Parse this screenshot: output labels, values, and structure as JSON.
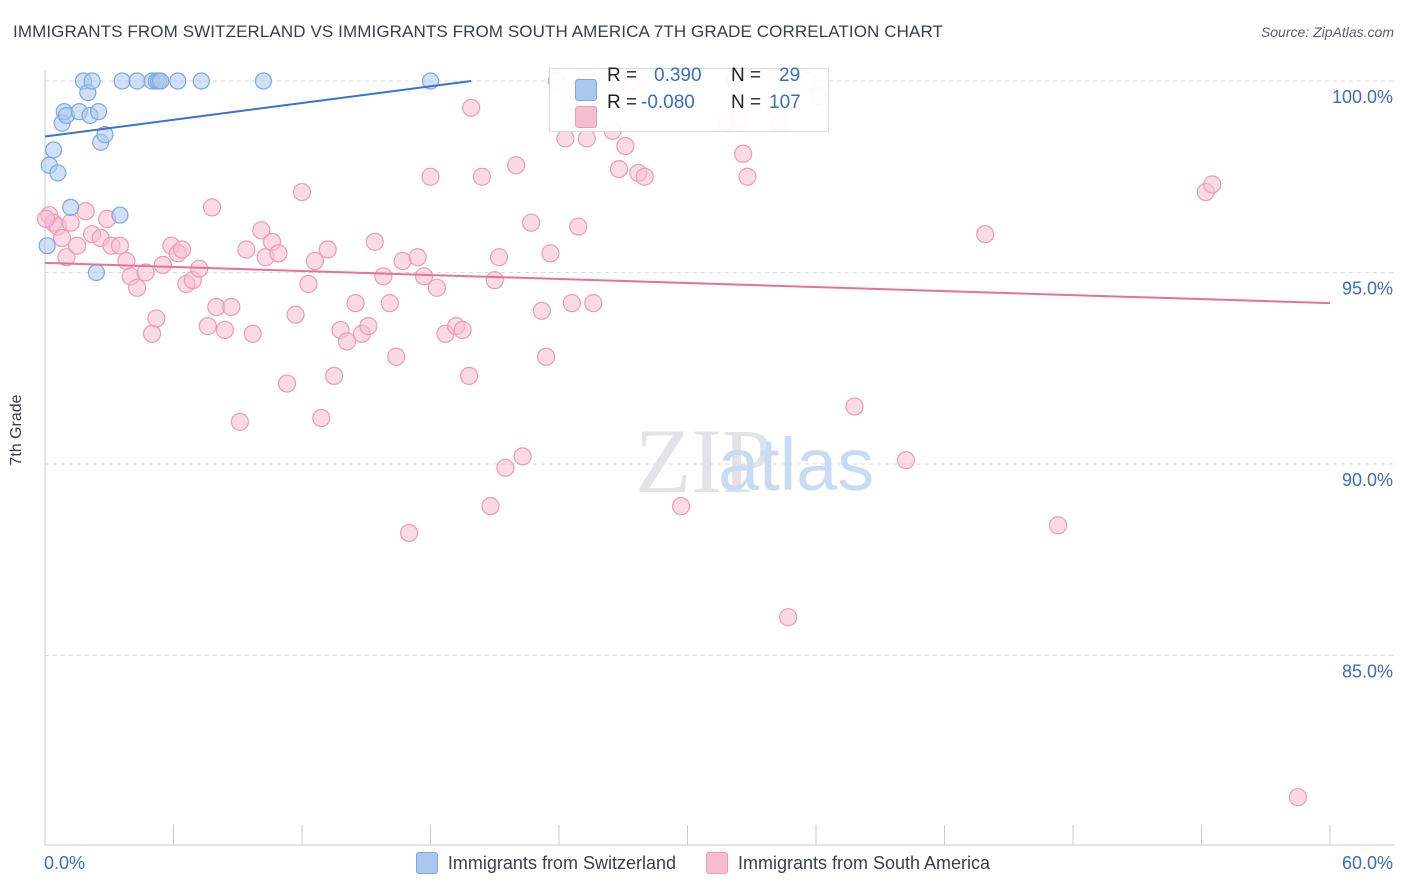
{
  "header": {
    "title": "IMMIGRANTS FROM SWITZERLAND VS IMMIGRANTS FROM SOUTH AMERICA 7TH GRADE CORRELATION CHART",
    "source": "Source: ZipAtlas.com"
  },
  "watermark": {
    "zip": "ZIP",
    "atlas": "atlas"
  },
  "stats": {
    "blue": {
      "r_label": "R =",
      "r_value": "0.390",
      "n_label": "N =",
      "n_value": "29"
    },
    "pink": {
      "r_label": "R =",
      "r_value": "-0.080",
      "n_label": "N =",
      "n_value": "107"
    }
  },
  "colors": {
    "blue_fill": "#a9c7ef",
    "blue_stroke": "#7ea8e0",
    "blue_line": "#3a72d0",
    "pink_fill": "#f6bdd0",
    "pink_stroke": "#ec9ab7",
    "pink_line": "#e8709a",
    "tick_text": "#3b6cc2",
    "grid": "#d6d9de"
  },
  "chart_data": {
    "type": "scatter",
    "title": "IMMIGRANTS FROM SWITZERLAND VS IMMIGRANTS FROM SOUTH AMERICA 7TH GRADE CORRELATION CHART",
    "xlabel": "",
    "ylabel": "7th Grade",
    "xlim": [
      0,
      60
    ],
    "ylim": [
      80.7,
      100.7
    ],
    "x_tick_labels": [
      "0.0%",
      "60.0%"
    ],
    "y_ticks": [
      {
        "value": 100,
        "label": "100.0%"
      },
      {
        "value": 95,
        "label": "95.0%"
      },
      {
        "value": 90,
        "label": "90.0%"
      },
      {
        "value": 85,
        "label": "85.0%"
      }
    ],
    "grid": true,
    "legend_position": "bottom",
    "series": [
      {
        "name": "Immigrants from Switzerland",
        "color": "#a9c7ef",
        "trend": {
          "x": [
            0,
            19.9
          ],
          "y": [
            98.55,
            100.0
          ]
        },
        "points": [
          [
            0.1,
            95.7
          ],
          [
            0.2,
            97.8
          ],
          [
            0.4,
            98.2
          ],
          [
            0.6,
            97.6
          ],
          [
            0.8,
            98.9
          ],
          [
            0.9,
            99.2
          ],
          [
            1.0,
            99.1
          ],
          [
            1.2,
            96.7
          ],
          [
            1.6,
            99.2
          ],
          [
            1.8,
            100.0
          ],
          [
            2.0,
            99.7
          ],
          [
            2.1,
            99.1
          ],
          [
            2.2,
            100.0
          ],
          [
            2.4,
            95.0
          ],
          [
            2.5,
            99.2
          ],
          [
            2.6,
            98.4
          ],
          [
            2.8,
            98.6
          ],
          [
            3.5,
            96.5
          ],
          [
            3.6,
            100.0
          ],
          [
            4.3,
            100.0
          ],
          [
            5.0,
            100.0
          ],
          [
            5.2,
            100.0
          ],
          [
            5.3,
            100.0
          ],
          [
            5.4,
            100.0
          ],
          [
            6.2,
            100.0
          ],
          [
            7.3,
            100.0
          ],
          [
            10.2,
            100.0
          ],
          [
            18.0,
            100.0
          ],
          [
            32.2,
            100.0
          ]
        ]
      },
      {
        "name": "Immigrants from South America",
        "color": "#f6bdd0",
        "trend": {
          "x": [
            0,
            60
          ],
          "y": [
            95.25,
            94.2
          ]
        },
        "points": [
          [
            0.2,
            96.5
          ],
          [
            0.4,
            96.3
          ],
          [
            0.6,
            96.2
          ],
          [
            0.8,
            95.9
          ],
          [
            1.0,
            95.4
          ],
          [
            1.2,
            96.3
          ],
          [
            1.5,
            95.7
          ],
          [
            1.9,
            96.6
          ],
          [
            2.2,
            96.0
          ],
          [
            2.6,
            95.9
          ],
          [
            2.9,
            96.4
          ],
          [
            3.1,
            95.7
          ],
          [
            3.5,
            95.7
          ],
          [
            3.8,
            95.3
          ],
          [
            4.0,
            94.9
          ],
          [
            4.3,
            94.6
          ],
          [
            4.7,
            95.0
          ],
          [
            5.0,
            93.4
          ],
          [
            5.2,
            93.8
          ],
          [
            5.5,
            95.2
          ],
          [
            5.9,
            95.7
          ],
          [
            6.2,
            95.5
          ],
          [
            6.4,
            95.6
          ],
          [
            6.6,
            94.7
          ],
          [
            6.9,
            94.8
          ],
          [
            7.2,
            95.1
          ],
          [
            7.6,
            93.6
          ],
          [
            7.8,
            96.7
          ],
          [
            8.0,
            94.1
          ],
          [
            8.4,
            93.5
          ],
          [
            8.7,
            94.1
          ],
          [
            9.1,
            91.1
          ],
          [
            9.4,
            95.6
          ],
          [
            9.7,
            93.4
          ],
          [
            10.1,
            96.1
          ],
          [
            10.3,
            95.4
          ],
          [
            10.6,
            95.8
          ],
          [
            10.9,
            95.5
          ],
          [
            11.3,
            92.1
          ],
          [
            11.7,
            93.9
          ],
          [
            12.0,
            97.1
          ],
          [
            12.3,
            94.7
          ],
          [
            12.6,
            95.3
          ],
          [
            12.9,
            91.2
          ],
          [
            13.2,
            95.6
          ],
          [
            13.5,
            92.3
          ],
          [
            13.8,
            93.5
          ],
          [
            14.1,
            93.2
          ],
          [
            14.5,
            94.2
          ],
          [
            14.8,
            93.4
          ],
          [
            15.1,
            93.6
          ],
          [
            15.4,
            95.8
          ],
          [
            15.8,
            94.9
          ],
          [
            16.1,
            94.2
          ],
          [
            16.4,
            92.8
          ],
          [
            16.7,
            95.3
          ],
          [
            17.0,
            88.2
          ],
          [
            17.4,
            95.4
          ],
          [
            17.7,
            94.9
          ],
          [
            18.0,
            97.5
          ],
          [
            18.3,
            94.6
          ],
          [
            18.7,
            93.4
          ],
          [
            19.2,
            93.6
          ],
          [
            19.5,
            93.5
          ],
          [
            19.8,
            92.3
          ],
          [
            19.9,
            99.3
          ],
          [
            20.4,
            97.5
          ],
          [
            20.8,
            88.9
          ],
          [
            21.0,
            94.8
          ],
          [
            21.2,
            95.4
          ],
          [
            21.5,
            89.9
          ],
          [
            22.0,
            97.8
          ],
          [
            22.3,
            90.2
          ],
          [
            22.7,
            96.3
          ],
          [
            23.2,
            94.0
          ],
          [
            23.4,
            92.8
          ],
          [
            23.6,
            95.5
          ],
          [
            23.9,
            100.0
          ],
          [
            24.3,
            98.5
          ],
          [
            24.6,
            94.2
          ],
          [
            24.9,
            96.2
          ],
          [
            25.3,
            98.5
          ],
          [
            25.6,
            94.2
          ],
          [
            26.2,
            100.0
          ],
          [
            26.5,
            98.7
          ],
          [
            26.8,
            97.7
          ],
          [
            27.1,
            98.3
          ],
          [
            27.4,
            100.0
          ],
          [
            27.7,
            97.6
          ],
          [
            28.0,
            97.5
          ],
          [
            29.7,
            88.9
          ],
          [
            31.8,
            98.9
          ],
          [
            32.4,
            99.0
          ],
          [
            32.6,
            98.1
          ],
          [
            32.8,
            97.5
          ],
          [
            34.3,
            98.9
          ],
          [
            34.7,
            86.0
          ],
          [
            35.6,
            100.0
          ],
          [
            36.1,
            99.6
          ],
          [
            37.8,
            91.5
          ],
          [
            40.2,
            90.1
          ],
          [
            43.9,
            96.0
          ],
          [
            47.3,
            88.4
          ],
          [
            54.2,
            97.1
          ],
          [
            54.5,
            97.3
          ],
          [
            58.5,
            81.3
          ],
          [
            0.05,
            96.4
          ]
        ]
      }
    ]
  }
}
